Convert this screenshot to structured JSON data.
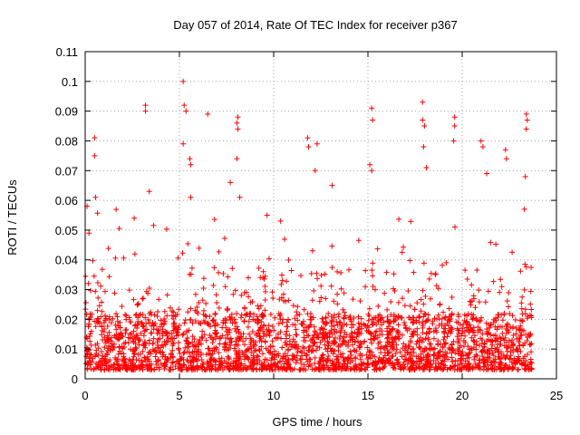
{
  "chart_data": {
    "type": "scatter",
    "title": "Day 057 of 2014, Rate Of TEC Index for receiver p367",
    "xlabel": "GPS time / hours",
    "ylabel": "ROTI / TECUs",
    "xlim": [
      0,
      25
    ],
    "ylim": [
      0,
      0.11
    ],
    "xticks": [
      0,
      5,
      10,
      15,
      20,
      25
    ],
    "yticks": [
      0,
      0.01,
      0.02,
      0.03,
      0.04,
      0.05,
      0.06,
      0.07,
      0.08,
      0.09,
      0.1,
      0.11
    ],
    "grid": true,
    "marker": "+",
    "color": "#ff0000",
    "series": [
      {
        "name": "ROTI",
        "x_range": [
          0,
          23.7
        ],
        "baseline_range": [
          0.003,
          0.022
        ],
        "notable_points": [
          {
            "x": 0.5,
            "y": 0.081
          },
          {
            "x": 0.5,
            "y": 0.075
          },
          {
            "x": 0.55,
            "y": 0.061
          },
          {
            "x": 0.1,
            "y": 0.058
          },
          {
            "x": 0.2,
            "y": 0.049
          },
          {
            "x": 3.2,
            "y": 0.092
          },
          {
            "x": 3.2,
            "y": 0.09
          },
          {
            "x": 3.4,
            "y": 0.063
          },
          {
            "x": 2.6,
            "y": 0.054
          },
          {
            "x": 5.2,
            "y": 0.1
          },
          {
            "x": 5.25,
            "y": 0.092
          },
          {
            "x": 5.35,
            "y": 0.09
          },
          {
            "x": 5.2,
            "y": 0.079
          },
          {
            "x": 5.55,
            "y": 0.074
          },
          {
            "x": 5.6,
            "y": 0.072
          },
          {
            "x": 5.6,
            "y": 0.061
          },
          {
            "x": 6.5,
            "y": 0.089
          },
          {
            "x": 7.7,
            "y": 0.066
          },
          {
            "x": 8.1,
            "y": 0.088
          },
          {
            "x": 8.05,
            "y": 0.086
          },
          {
            "x": 8.1,
            "y": 0.084
          },
          {
            "x": 8.05,
            "y": 0.074
          },
          {
            "x": 8.2,
            "y": 0.061
          },
          {
            "x": 9.65,
            "y": 0.055
          },
          {
            "x": 11.8,
            "y": 0.081
          },
          {
            "x": 11.85,
            "y": 0.078
          },
          {
            "x": 12.3,
            "y": 0.079
          },
          {
            "x": 12.2,
            "y": 0.07
          },
          {
            "x": 13.1,
            "y": 0.065
          },
          {
            "x": 15.2,
            "y": 0.091
          },
          {
            "x": 15.25,
            "y": 0.087
          },
          {
            "x": 15.1,
            "y": 0.072
          },
          {
            "x": 15.2,
            "y": 0.07
          },
          {
            "x": 17.9,
            "y": 0.093
          },
          {
            "x": 17.9,
            "y": 0.087
          },
          {
            "x": 18.0,
            "y": 0.085
          },
          {
            "x": 17.95,
            "y": 0.078
          },
          {
            "x": 18.1,
            "y": 0.071
          },
          {
            "x": 19.6,
            "y": 0.088
          },
          {
            "x": 19.6,
            "y": 0.085
          },
          {
            "x": 19.55,
            "y": 0.08
          },
          {
            "x": 21.0,
            "y": 0.08
          },
          {
            "x": 21.1,
            "y": 0.078
          },
          {
            "x": 21.3,
            "y": 0.069
          },
          {
            "x": 22.3,
            "y": 0.077
          },
          {
            "x": 22.35,
            "y": 0.074
          },
          {
            "x": 23.4,
            "y": 0.089
          },
          {
            "x": 23.45,
            "y": 0.087
          },
          {
            "x": 23.4,
            "y": 0.084
          },
          {
            "x": 23.35,
            "y": 0.068
          },
          {
            "x": 23.3,
            "y": 0.057
          }
        ]
      }
    ]
  }
}
